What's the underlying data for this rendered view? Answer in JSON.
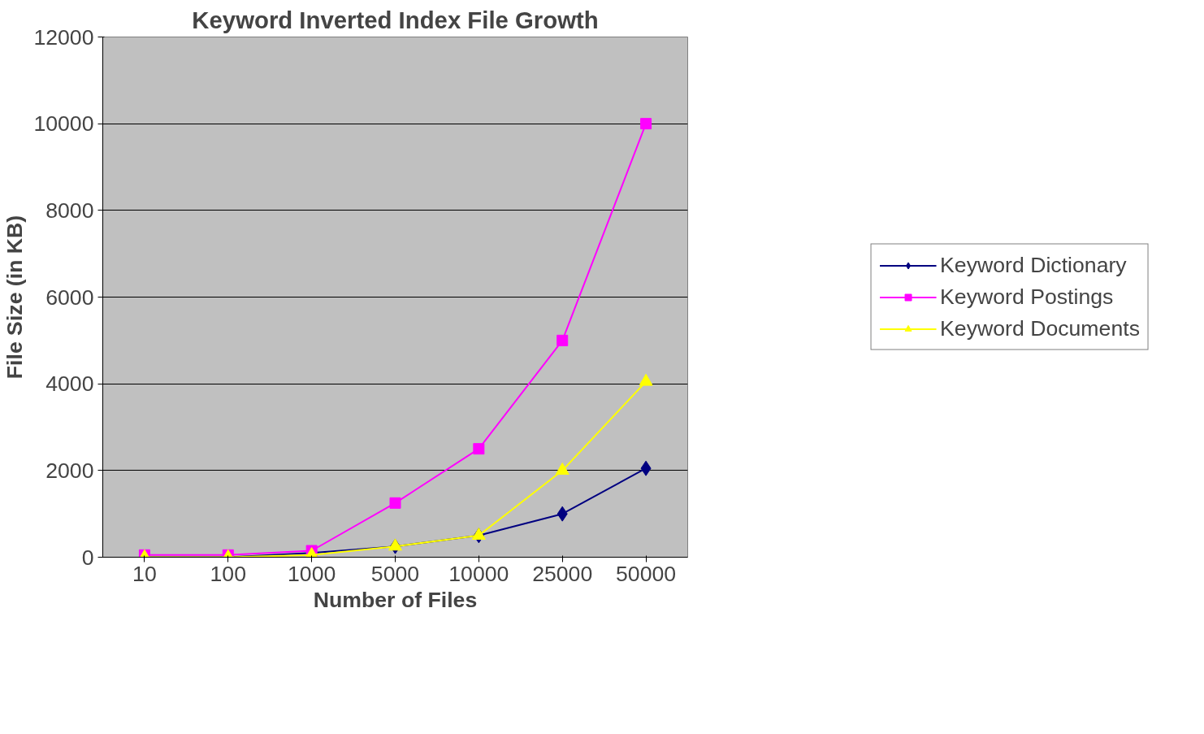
{
  "chart_data": {
    "type": "line",
    "title": "Keyword Inverted Index File Growth",
    "xlabel": "Number of Files",
    "ylabel": "File Size (in KB)",
    "categories": [
      "10",
      "100",
      "1000",
      "5000",
      "10000",
      "25000",
      "50000"
    ],
    "series": [
      {
        "name": "Keyword Dictionary",
        "color": "#000080",
        "marker": "diamond",
        "values": [
          0,
          0,
          100,
          250,
          500,
          1000,
          2050
        ]
      },
      {
        "name": "Keyword Postings",
        "color": "#ff00ff",
        "marker": "square",
        "values": [
          50,
          50,
          150,
          1250,
          2500,
          5000,
          10000
        ]
      },
      {
        "name": "Keyword Documents",
        "color": "#ffff00",
        "marker": "triangle",
        "values": [
          0,
          0,
          50,
          250,
          500,
          2000,
          4050
        ]
      }
    ],
    "ylim": [
      0,
      12000
    ],
    "yticks": [
      0,
      2000,
      4000,
      6000,
      8000,
      10000,
      12000
    ],
    "grid": "y",
    "legend": "right",
    "line_style": "solid"
  }
}
